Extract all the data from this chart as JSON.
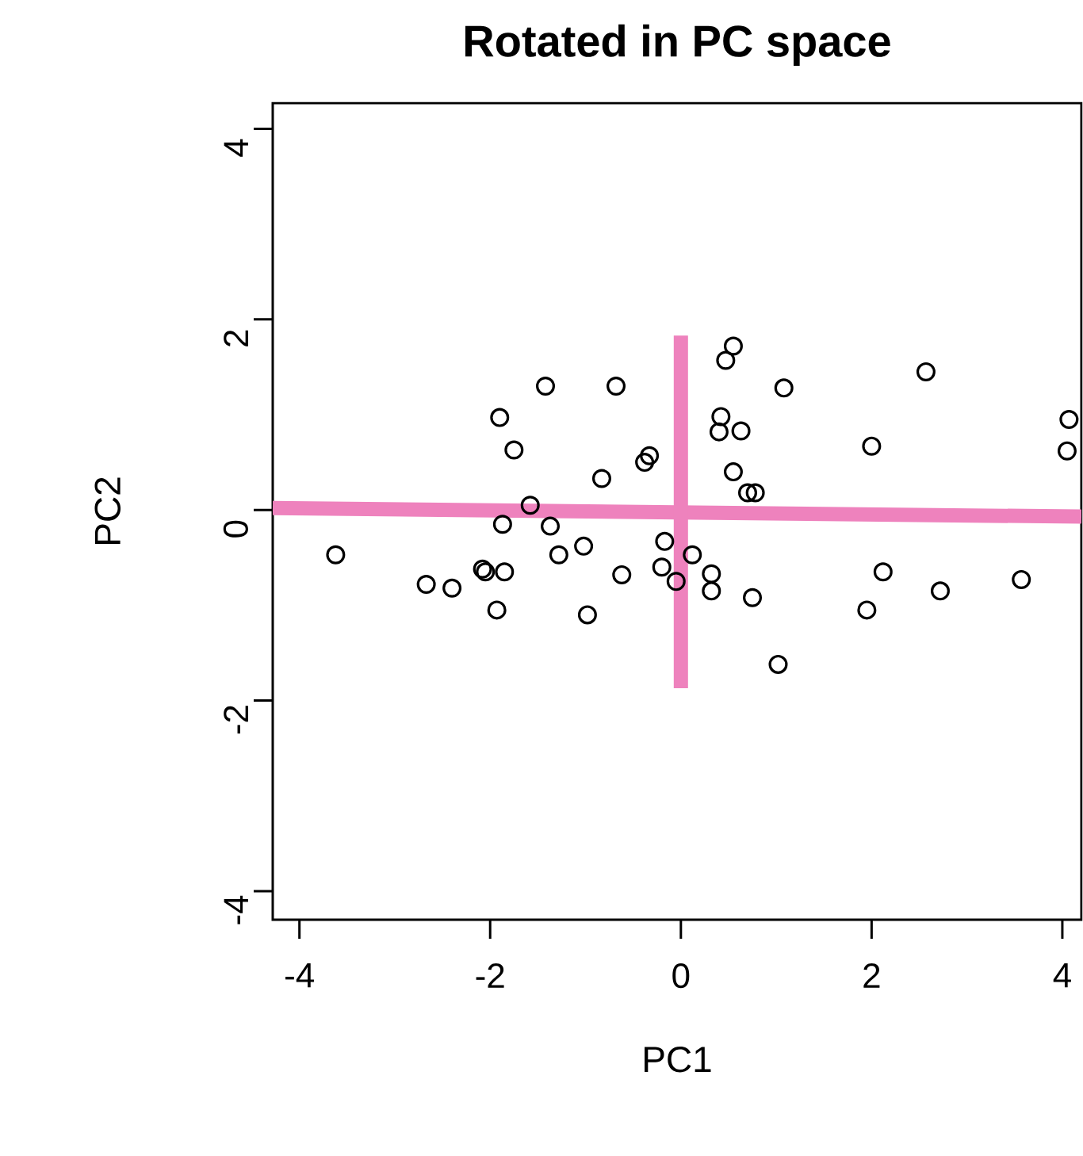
{
  "chart_data": {
    "type": "scatter",
    "title": "Rotated in PC space",
    "xlabel": "PC1",
    "ylabel": "PC2",
    "xlim": [
      -4.28,
      4.2
    ],
    "ylim": [
      -4.3,
      4.27
    ],
    "xticks": [
      -4,
      -2,
      0,
      2,
      4
    ],
    "yticks": [
      -4,
      -2,
      0,
      2,
      4
    ],
    "grid": false,
    "series": [
      {
        "color": "#000000",
        "marker": "circle",
        "x": [
          -3.62,
          -2.67,
          -2.4,
          -2.08,
          -2.05,
          -1.85,
          -1.93,
          -1.9,
          -1.75,
          -1.87,
          -1.58,
          -1.42,
          -1.37,
          -1.28,
          -1.02,
          -0.98,
          -0.83,
          -0.68,
          -0.62,
          -0.38,
          -0.33,
          -0.2,
          -0.17,
          -0.05,
          0.12,
          0.55,
          0.47,
          1.08,
          2.57,
          0.42,
          0.4,
          0.63,
          2.0,
          4.07,
          4.05,
          0.55,
          0.7,
          0.78,
          0.32,
          0.32,
          0.75,
          2.12,
          1.95,
          2.72,
          3.57,
          1.02
        ],
        "values": [
          -0.47,
          -0.78,
          -0.82,
          -0.62,
          -0.65,
          -0.65,
          -1.05,
          0.97,
          0.63,
          -0.15,
          0.05,
          1.3,
          -0.17,
          -0.47,
          -0.38,
          -1.1,
          0.33,
          1.3,
          -0.68,
          0.5,
          0.57,
          -0.6,
          -0.33,
          -0.75,
          -0.47,
          1.72,
          1.57,
          1.28,
          1.45,
          0.98,
          0.82,
          0.83,
          0.67,
          0.95,
          0.62,
          0.4,
          0.18,
          0.18,
          -0.67,
          -0.85,
          -0.92,
          -0.65,
          -1.05,
          -0.85,
          -0.73,
          -1.62
        ]
      },
      {
        "type": "line",
        "marker": "none",
        "color": "#ee82bd",
        "x": [
          -4.28,
          4.2
        ],
        "values": [
          0.02,
          -0.07
        ]
      },
      {
        "type": "line",
        "marker": "none",
        "color": "#ee82bd",
        "x": [
          0,
          0
        ],
        "values": [
          1.83,
          -1.87
        ]
      }
    ]
  }
}
